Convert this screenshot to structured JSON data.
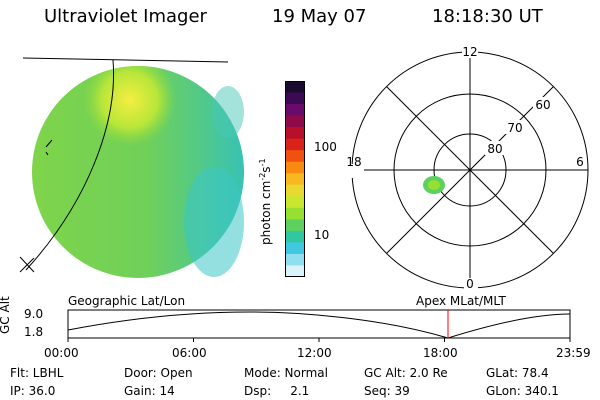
{
  "header": {
    "title": "Ultraviolet Imager",
    "date": "19 May 07",
    "time": "18:18:30 UT"
  },
  "colorbar": {
    "unit_label": "photon cm",
    "unit_exp1": "-2",
    "unit_mid": "s",
    "unit_exp2": "-1",
    "ticks": [
      "100",
      "10"
    ],
    "colors": [
      "#1a0a2e",
      "#3a0a55",
      "#6a0a6a",
      "#90094a",
      "#b8102a",
      "#d8221a",
      "#f05010",
      "#f88a10",
      "#f8b820",
      "#e8d830",
      "#c8e830",
      "#98e030",
      "#5ed060",
      "#30c8a0",
      "#40c8e0",
      "#90dff0",
      "#d8f4fa"
    ]
  },
  "polar": {
    "mlt_labels": {
      "top": "12",
      "left": "18",
      "right": "6",
      "bottom": "0"
    },
    "lat_labels": [
      "60",
      "70",
      "80"
    ]
  },
  "timeline": {
    "left_label": "Geographic Lat/Lon",
    "right_label": "Apex MLat/MLT",
    "axis_title": "GC Alt",
    "y_ticks": [
      "9.0",
      "1.8"
    ],
    "x_ticks": [
      "00:00",
      "06:00",
      "12:00",
      "18:00",
      "23:59"
    ],
    "current_marker_color": "#ff0000"
  },
  "info": {
    "flt": "Flt: LBHL",
    "ip": "IP: 36.0",
    "door": "Door: Open",
    "gain": "Gain: 14",
    "mode": "Mode: Normal",
    "dsp": "Dsp:     2.1",
    "gcalt": "GC Alt: 2.0 Re",
    "seq": "Seq: 39",
    "glat": "GLat: 78.4",
    "glon": "GLon: 340.1"
  }
}
